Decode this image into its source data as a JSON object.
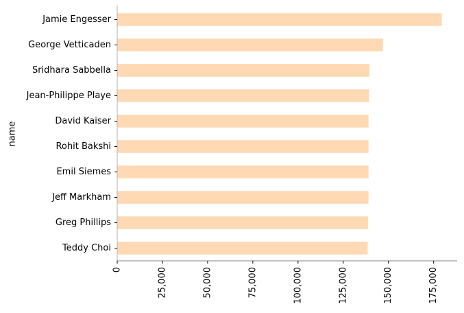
{
  "chart_data": {
    "type": "bar",
    "orientation": "horizontal",
    "categories": [
      "Jamie Engesser",
      "George Vetticaden",
      "Sridhara Sabbella",
      "Jean-Philippe Playe",
      "David Kaiser",
      "Rohit Bakshi",
      "Emil Siemes",
      "Jeff Markham",
      "Greg Phillips",
      "Teddy Choi"
    ],
    "values": [
      179500,
      147000,
      139500,
      139300,
      139000,
      139000,
      139000,
      139000,
      138700,
      138500
    ],
    "title": "",
    "xlabel": "",
    "ylabel": "name",
    "xlim": [
      0,
      188000
    ],
    "xticks": [
      0,
      25000,
      50000,
      75000,
      100000,
      125000,
      150000,
      175000
    ],
    "xtick_labels": [
      "0",
      "25,000",
      "50,000",
      "75,000",
      "100,000",
      "125,000",
      "150,000",
      "175,000"
    ],
    "bar_color": "#ffd9b3",
    "grid": false,
    "legend": "none"
  }
}
